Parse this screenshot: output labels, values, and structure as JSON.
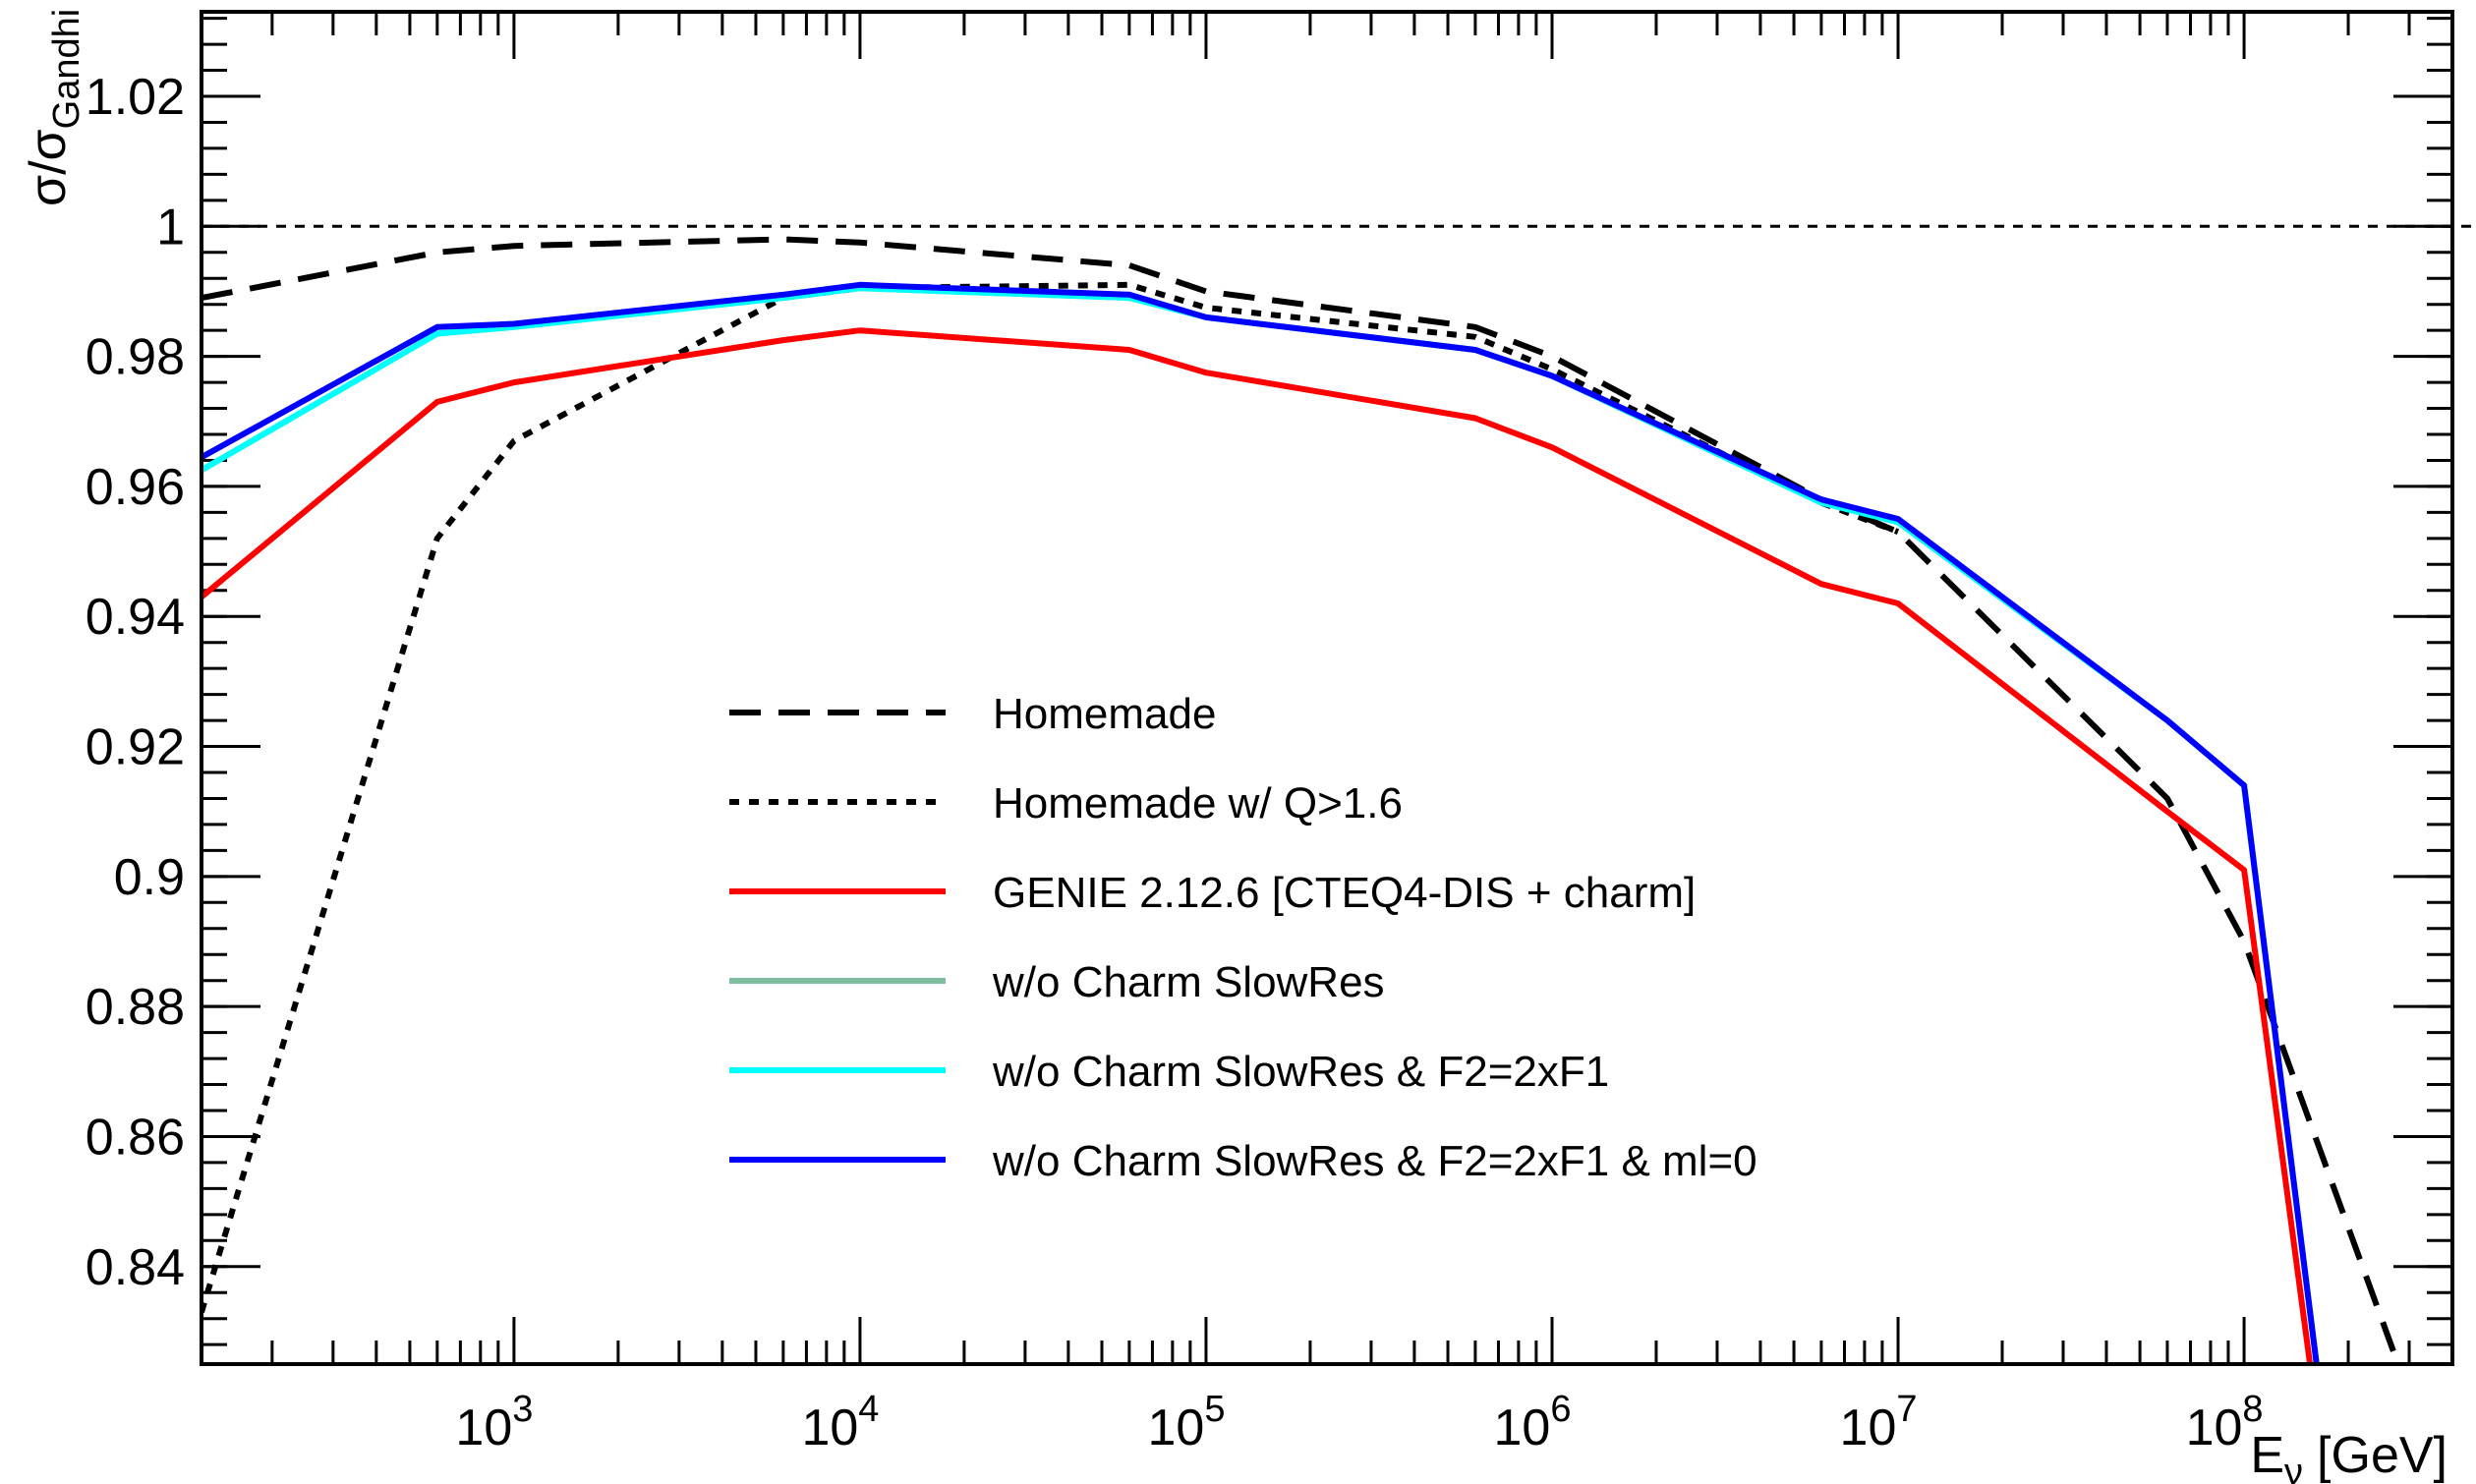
{
  "chart_data": {
    "type": "line",
    "title": "",
    "xlabel": "E",
    "xlabel_sub": "ν",
    "xlabel_unit": "[GeV]",
    "ylabel": "σ/σ",
    "ylabel_sub": "Gandhi",
    "xscale": "log",
    "xlim": [
      125,
      400000000
    ],
    "ylim": [
      0.825,
      1.033
    ],
    "grid": false,
    "legend_position": "center",
    "reference_line": {
      "y": 1.0,
      "style": "dashed"
    },
    "y_ticks": [
      {
        "value": 0.84,
        "label": "0.84"
      },
      {
        "value": 0.86,
        "label": "0.86"
      },
      {
        "value": 0.88,
        "label": "0.88"
      },
      {
        "value": 0.9,
        "label": "0.9"
      },
      {
        "value": 0.92,
        "label": "0.92"
      },
      {
        "value": 0.94,
        "label": "0.94"
      },
      {
        "value": 0.96,
        "label": "0.96"
      },
      {
        "value": 0.98,
        "label": "0.98"
      },
      {
        "value": 1.0,
        "label": "1"
      },
      {
        "value": 1.02,
        "label": "1.02"
      }
    ],
    "x_ticks": [
      {
        "value": 1000,
        "base": "10",
        "exp": "3"
      },
      {
        "value": 10000,
        "base": "10",
        "exp": "4"
      },
      {
        "value": 100000,
        "base": "10",
        "exp": "5"
      },
      {
        "value": 1000000,
        "base": "10",
        "exp": "6"
      },
      {
        "value": 10000000,
        "base": "10",
        "exp": "7"
      },
      {
        "value": 100000000,
        "base": "10",
        "exp": "8"
      }
    ],
    "series": [
      {
        "name": "Homemade",
        "color": "#000000",
        "style": "dashed",
        "x": [
          125,
          600,
          1000,
          6000,
          10000,
          60000,
          100000,
          600000,
          1000000,
          6000000,
          10000000,
          60000000,
          100000000,
          270000000
        ],
        "y": [
          0.989,
          0.996,
          0.997,
          0.998,
          0.9975,
          0.994,
          0.99,
          0.9845,
          0.98,
          0.958,
          0.953,
          0.912,
          0.89,
          0.827
        ]
      },
      {
        "name": "Homemade w/ Q>1.6",
        "color": "#000000",
        "style": "dotted",
        "x": [
          125,
          600,
          1000,
          6000,
          10000,
          60000,
          100000,
          600000,
          1000000,
          6000000,
          10000000
        ],
        "y": [
          0.833,
          0.952,
          0.967,
          0.989,
          0.9905,
          0.991,
          0.9875,
          0.983,
          0.978,
          0.9575,
          0.953
        ]
      },
      {
        "name": "GENIE 2.12.6 [CTEQ4-DIS + charm]",
        "color": "#ff0000",
        "style": "solid",
        "x": [
          125,
          600,
          1000,
          6000,
          10000,
          60000,
          100000,
          600000,
          1000000,
          6000000,
          10000000,
          60000000,
          100000000,
          155000000
        ],
        "y": [
          0.943,
          0.973,
          0.976,
          0.9825,
          0.984,
          0.981,
          0.9775,
          0.9705,
          0.966,
          0.945,
          0.942,
          0.91,
          0.901,
          0.825
        ]
      },
      {
        "name": "w/o Charm SlowRes",
        "color": "#7fbf9f",
        "style": "solid",
        "x": [
          125,
          600,
          1000,
          6000,
          10000,
          60000,
          100000,
          600000,
          1000000,
          6000000,
          10000000,
          60000000,
          100000000,
          162000000
        ],
        "y": [
          0.9625,
          0.9835,
          0.9845,
          0.989,
          0.9905,
          0.989,
          0.986,
          0.981,
          0.977,
          0.9575,
          0.9545,
          0.924,
          0.914,
          0.825
        ]
      },
      {
        "name": "w/o Charm SlowRes & F2=2xF1",
        "color": "#00ffff",
        "style": "solid",
        "x": [
          125,
          600,
          1000,
          6000,
          10000,
          60000,
          100000,
          600000,
          1000000,
          6000000,
          10000000,
          60000000,
          100000000,
          162000000
        ],
        "y": [
          0.9625,
          0.9835,
          0.9845,
          0.989,
          0.9905,
          0.989,
          0.986,
          0.981,
          0.977,
          0.9575,
          0.9545,
          0.924,
          0.914,
          0.825
        ]
      },
      {
        "name": "w/o Charm SlowRes & F2=2xF1 & ml=0",
        "color": "#0000ff",
        "style": "solid",
        "x": [
          125,
          600,
          1000,
          6000,
          10000,
          60000,
          100000,
          600000,
          1000000,
          6000000,
          10000000,
          60000000,
          100000000,
          162000000
        ],
        "y": [
          0.9645,
          0.9845,
          0.985,
          0.9895,
          0.991,
          0.9895,
          0.986,
          0.981,
          0.977,
          0.958,
          0.955,
          0.924,
          0.914,
          0.825
        ]
      }
    ]
  }
}
